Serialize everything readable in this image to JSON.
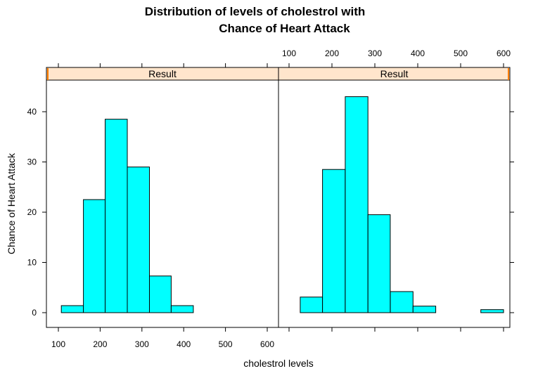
{
  "chart_data": {
    "type": "bar",
    "title_line1": "Distribution of levels of cholestrol with",
    "title_line2": "Chance of Heart Attack",
    "xlabel": "cholestrol levels",
    "ylabel": "Chance of Heart Attack",
    "xlim": [
      80,
      610
    ],
    "ylim": [
      -3,
      46
    ],
    "x_ticks": [
      100,
      200,
      300,
      400,
      500,
      600
    ],
    "y_ticks": [
      0,
      10,
      20,
      30,
      40
    ],
    "bar_color": "#00ffff",
    "strip_color": "#ffe5cc",
    "strip_marker_color": "#ff7f00",
    "panels": [
      {
        "strip_label": "Result",
        "bins": [
          {
            "from": 107,
            "to": 160,
            "value": 1.4
          },
          {
            "from": 160,
            "to": 212,
            "value": 22.5
          },
          {
            "from": 212,
            "to": 265,
            "value": 38.5
          },
          {
            "from": 265,
            "to": 318,
            "value": 29.0
          },
          {
            "from": 318,
            "to": 370,
            "value": 7.3
          },
          {
            "from": 370,
            "to": 423,
            "value": 1.4
          },
          {
            "from": 423,
            "to": 476,
            "value": 0
          },
          {
            "from": 476,
            "to": 528,
            "value": 0
          },
          {
            "from": 528,
            "to": 581,
            "value": 0
          }
        ]
      },
      {
        "strip_label": "Result",
        "bins": [
          {
            "from": 126,
            "to": 178,
            "value": 3.1
          },
          {
            "from": 178,
            "to": 231,
            "value": 28.5
          },
          {
            "from": 231,
            "to": 284,
            "value": 43.0
          },
          {
            "from": 284,
            "to": 336,
            "value": 19.5
          },
          {
            "from": 336,
            "to": 389,
            "value": 4.2
          },
          {
            "from": 389,
            "to": 442,
            "value": 1.3
          },
          {
            "from": 442,
            "to": 494,
            "value": 0
          },
          {
            "from": 494,
            "to": 547,
            "value": 0
          },
          {
            "from": 547,
            "to": 600,
            "value": 0.6
          }
        ]
      }
    ]
  }
}
